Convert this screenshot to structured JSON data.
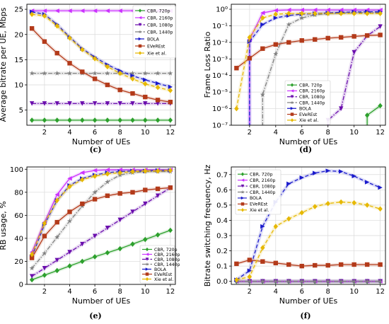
{
  "chart_data": [
    {
      "type": "line",
      "panel_label": "(c)",
      "xlabel": "Number of UEs",
      "ylabel": "Average bitrate per UE, Mbps",
      "xlim": [
        0.6,
        12.4
      ],
      "ylim": [
        2,
        26
      ],
      "xticks": [
        2,
        4,
        6,
        8,
        10,
        12
      ],
      "yticks": [
        5,
        10,
        15,
        20,
        25
      ],
      "y_scale": "linear",
      "grid": true,
      "legend_position": "top-right",
      "x": [
        1,
        2,
        3,
        4,
        5,
        6,
        7,
        8,
        9,
        10,
        11,
        12
      ],
      "series": [
        {
          "name": "CBR, 720p",
          "color": "#2ca02c",
          "dash": "solid",
          "marker": "diamond",
          "values": [
            3,
            3,
            3,
            3,
            3,
            3,
            3,
            3,
            3,
            3,
            3,
            3
          ]
        },
        {
          "name": "CBR, 2160p",
          "color": "#cc33ff",
          "dash": "solid",
          "marker": "tri-left",
          "values": [
            24.7,
            24.7,
            24.7,
            24.7,
            24.7,
            24.7,
            24.7,
            24.7,
            24.7,
            24.7,
            24.7,
            24.7
          ]
        },
        {
          "name": "CBR, 1080p",
          "color": "#6a0dad",
          "dash": "dashdot",
          "marker": "tri-down",
          "values": [
            6.3,
            6.3,
            6.3,
            6.3,
            6.3,
            6.3,
            6.3,
            6.3,
            6.3,
            6.3,
            6.3,
            6.3
          ]
        },
        {
          "name": "CBR, 1440p",
          "color": "#808080",
          "dash": "dashdot",
          "marker": "star",
          "values": [
            12.3,
            12.3,
            12.3,
            12.3,
            12.3,
            12.3,
            12.3,
            12.3,
            12.3,
            12.3,
            12.3,
            12.3
          ]
        },
        {
          "name": "BOLA",
          "color": "#1a1acc",
          "dash": "dashed",
          "marker": "tri-right",
          "values": [
            24.5,
            24.0,
            22.0,
            19.5,
            17.2,
            15.5,
            14.0,
            12.8,
            11.8,
            11.0,
            10.3,
            9.6
          ]
        },
        {
          "name": "EVeREst",
          "color": "#b33a1a",
          "dash": "solid",
          "marker": "square",
          "values": [
            21.2,
            18.6,
            16.3,
            14.3,
            12.6,
            11.2,
            10.0,
            9.0,
            8.3,
            7.6,
            7.0,
            6.6
          ]
        },
        {
          "name": "Xie et al.",
          "color": "#e6b800",
          "dash": "dashed",
          "marker": "diamond",
          "values": [
            24.0,
            23.7,
            21.7,
            19.3,
            17.0,
            15.2,
            13.6,
            12.3,
            11.2,
            10.2,
            9.5,
            8.9
          ]
        }
      ]
    },
    {
      "type": "line",
      "panel_label": "(d)",
      "xlabel": "Number of UEs",
      "ylabel": "Frame Loss Ratio",
      "xlim": [
        0.6,
        12.4
      ],
      "ylim": [
        1e-07,
        2
      ],
      "xticks": [
        2,
        4,
        6,
        8,
        10,
        12
      ],
      "yticks": [
        1e-07,
        1e-06,
        1e-05,
        0.0001,
        0.001,
        0.01,
        0.1,
        1
      ],
      "ytick_labels": [
        "10⁻⁷",
        "10⁻⁶",
        "10⁻⁵",
        "10⁻⁴",
        "10⁻³",
        "10⁻²",
        "10⁻¹",
        "10⁰"
      ],
      "y_scale": "log",
      "grid": true,
      "legend_position": "bottom-right",
      "series": [
        {
          "name": "CBR, 720p",
          "color": "#2ca02c",
          "dash": "solid",
          "marker": "diamond",
          "x": [
            11,
            12
          ],
          "values": [
            4e-07,
            1.5e-06
          ],
          "drop_to_floor_at": 11
        },
        {
          "name": "CBR, 2160p",
          "color": "#cc33ff",
          "dash": "solid",
          "marker": "tri-left",
          "x": [
            2,
            3,
            4,
            5,
            6,
            7,
            8,
            9,
            10,
            11,
            12
          ],
          "values": [
            0.015,
            0.6,
            0.85,
            0.9,
            0.9,
            0.9,
            0.9,
            0.9,
            0.9,
            0.9,
            0.9
          ],
          "drop_to_floor_at": 2
        },
        {
          "name": "CBR, 1080p",
          "color": "#6a0dad",
          "dash": "dashdot",
          "marker": "tri-down",
          "x": [
            8,
            9,
            10,
            11,
            12
          ],
          "values": [
            2e-07,
            1e-06,
            0.0025,
            0.025,
            0.09
          ],
          "drop_to_floor_at": 8
        },
        {
          "name": "CBR, 1440p",
          "color": "#808080",
          "dash": "dashdot",
          "marker": "star",
          "x": [
            3,
            4,
            5,
            6,
            7,
            8,
            9,
            10,
            11,
            12
          ],
          "values": [
            7e-06,
            0.002,
            0.12,
            0.3,
            0.45,
            0.55,
            0.6,
            0.62,
            0.62,
            0.62
          ],
          "drop_to_floor_at": 3
        },
        {
          "name": "BOLA",
          "color": "#1a1acc",
          "dash": "dashed",
          "marker": "tri-right",
          "x": [
            2,
            3,
            4,
            5,
            6,
            7,
            8,
            9,
            10,
            11,
            12
          ],
          "values": [
            0.011,
            0.12,
            0.3,
            0.42,
            0.5,
            0.55,
            0.6,
            0.65,
            0.68,
            0.7,
            0.7
          ],
          "drop_to_floor_at": 2
        },
        {
          "name": "EVeREst",
          "color": "#b33a1a",
          "dash": "solid",
          "marker": "square",
          "x": [
            1,
            2,
            3,
            4,
            5,
            6,
            7,
            8,
            9,
            10,
            11,
            12
          ],
          "values": [
            0.00028,
            0.0011,
            0.0042,
            0.0075,
            0.01,
            0.013,
            0.015,
            0.018,
            0.02,
            0.023,
            0.026,
            0.028
          ]
        },
        {
          "name": "Xie et al.",
          "color": "#e6b800",
          "dash": "dashed",
          "marker": "diamond",
          "x": [
            1,
            2,
            3,
            4,
            5,
            6,
            7,
            8,
            9,
            10,
            11,
            12
          ],
          "values": [
            1e-06,
            0.02,
            0.3,
            0.5,
            0.55,
            0.55,
            0.55,
            0.55,
            0.55,
            0.55,
            0.55,
            0.55
          ]
        }
      ]
    },
    {
      "type": "line",
      "panel_label": "(e)",
      "xlabel": "Number of UEs",
      "ylabel": "RB usage, %",
      "xlim": [
        0.6,
        12.4
      ],
      "ylim": [
        0,
        102
      ],
      "xticks": [
        2,
        4,
        6,
        8,
        10,
        12
      ],
      "yticks": [
        0,
        20,
        40,
        60,
        80,
        100
      ],
      "y_scale": "linear",
      "grid": true,
      "legend_position": "bottom-right",
      "x": [
        1,
        2,
        3,
        4,
        5,
        6,
        7,
        8,
        9,
        10,
        11,
        12
      ],
      "series": [
        {
          "name": "CBR, 720p",
          "color": "#2ca02c",
          "dash": "solid",
          "marker": "diamond",
          "values": [
            4,
            8,
            12,
            16,
            20,
            24,
            27.5,
            31,
            35,
            39,
            43,
            47
          ]
        },
        {
          "name": "CBR, 2160p",
          "color": "#cc33ff",
          "dash": "solid",
          "marker": "tri-left",
          "values": [
            28,
            54,
            78,
            92,
            97,
            99,
            99.5,
            99.5,
            99.5,
            99.5,
            99.5,
            99.5
          ]
        },
        {
          "name": "CBR, 1080p",
          "color": "#6a0dad",
          "dash": "dashdot",
          "marker": "tri-down",
          "values": [
            7,
            14,
            21,
            28,
            35,
            42,
            49,
            56,
            63,
            70,
            77,
            84
          ]
        },
        {
          "name": "CBR, 1440p",
          "color": "#808080",
          "dash": "dashdot",
          "marker": "star",
          "values": [
            14,
            27,
            41,
            55,
            68,
            80,
            89,
            95,
            97,
            98,
            98,
            98
          ]
        },
        {
          "name": "BOLA",
          "color": "#1a1acc",
          "dash": "dashed",
          "marker": "tri-right",
          "values": [
            24,
            52,
            73,
            86,
            92,
            95,
            97,
            98,
            98.5,
            98.5,
            99,
            99
          ]
        },
        {
          "name": "EVeREst",
          "color": "#b33a1a",
          "dash": "solid",
          "marker": "square",
          "values": [
            23,
            42,
            54,
            63,
            70,
            74,
            77,
            79,
            80,
            82,
            83,
            84
          ]
        },
        {
          "name": "Xie et al.",
          "color": "#e6b800",
          "dash": "dashed",
          "marker": "diamond",
          "values": [
            26,
            53,
            73,
            85,
            91,
            94,
            96,
            97,
            98,
            98.5,
            98.5,
            99
          ]
        }
      ]
    },
    {
      "type": "line",
      "panel_label": "(f)",
      "xlabel": "Number of UEs",
      "ylabel": "Bitrate switching frequency, Hz",
      "xlim": [
        0.6,
        12.4
      ],
      "ylim": [
        -0.02,
        0.75
      ],
      "xticks": [
        2,
        4,
        6,
        8,
        10,
        12
      ],
      "yticks": [
        0.0,
        0.1,
        0.2,
        0.3,
        0.4,
        0.5,
        0.6,
        0.7
      ],
      "ytick_labels": [
        "0.0",
        "0.1",
        "0.2",
        "0.3",
        "0.4",
        "0.5",
        "0.6",
        "0.7"
      ],
      "y_scale": "linear",
      "grid": true,
      "legend_position": "top-left",
      "x": [
        1,
        2,
        3,
        4,
        5,
        6,
        7,
        8,
        9,
        10,
        11,
        12
      ],
      "series": [
        {
          "name": "CBR, 720p",
          "color": "#2ca02c",
          "dash": "solid",
          "marker": "diamond",
          "values": [
            0,
            0,
            0,
            0,
            0,
            0,
            0,
            0,
            0,
            0,
            0,
            0
          ]
        },
        {
          "name": "CBR, 2160p",
          "color": "#cc33ff",
          "dash": "solid",
          "marker": "tri-left",
          "values": [
            0,
            0,
            0,
            0,
            0,
            0,
            0,
            0,
            0,
            0,
            0,
            0
          ]
        },
        {
          "name": "CBR, 1080p",
          "color": "#6a0dad",
          "dash": "dashdot",
          "marker": "tri-down",
          "values": [
            0,
            0,
            0,
            0,
            0,
            0,
            0,
            0,
            0,
            0,
            0,
            0
          ]
        },
        {
          "name": "CBR, 1440p",
          "color": "#808080",
          "dash": "dashdot",
          "marker": "star",
          "values": [
            0,
            0,
            0,
            0,
            0,
            0,
            0,
            0,
            0,
            0,
            0,
            0
          ]
        },
        {
          "name": "BOLA",
          "color": "#1a1acc",
          "dash": "dashed",
          "marker": "tri-right",
          "values": [
            0.01,
            0.07,
            0.36,
            0.52,
            0.64,
            0.68,
            0.71,
            0.725,
            0.72,
            0.69,
            0.65,
            0.615
          ]
        },
        {
          "name": "EVeREst",
          "color": "#b33a1a",
          "dash": "solid",
          "marker": "square",
          "values": [
            0.115,
            0.14,
            0.13,
            0.12,
            0.11,
            0.1,
            0.105,
            0.105,
            0.11,
            0.11,
            0.11,
            0.11
          ]
        },
        {
          "name": "Xie et al.",
          "color": "#e6b800",
          "dash": "dashed",
          "marker": "diamond",
          "values": [
            0.01,
            0.03,
            0.22,
            0.36,
            0.41,
            0.45,
            0.49,
            0.51,
            0.52,
            0.515,
            0.5,
            0.475
          ]
        }
      ]
    }
  ]
}
